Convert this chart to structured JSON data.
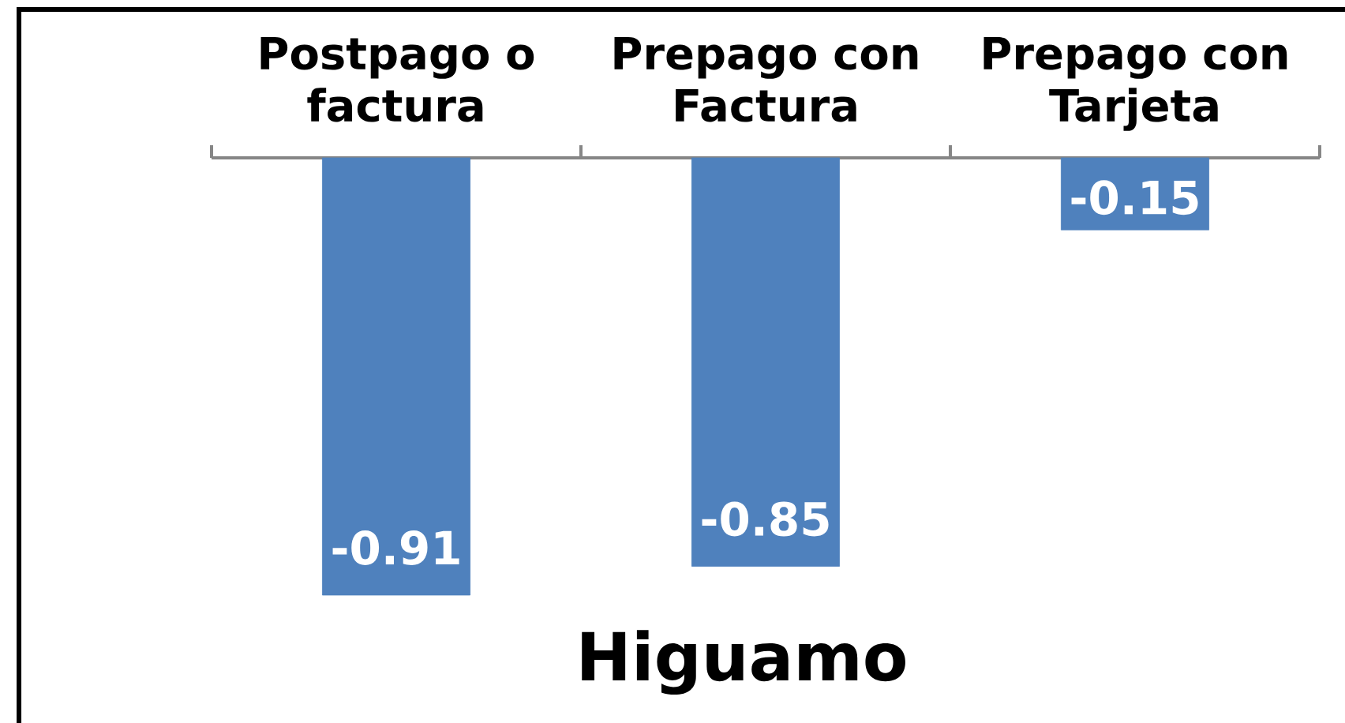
{
  "chart_data": {
    "type": "bar",
    "title": "Higuamo",
    "categories": [
      "Postpago o factura",
      "Prepago con Factura",
      "Prepago con Tarjeta"
    ],
    "values": [
      -0.91,
      -0.85,
      -0.15
    ],
    "color": "#4f81bd",
    "data_labels": true
  }
}
